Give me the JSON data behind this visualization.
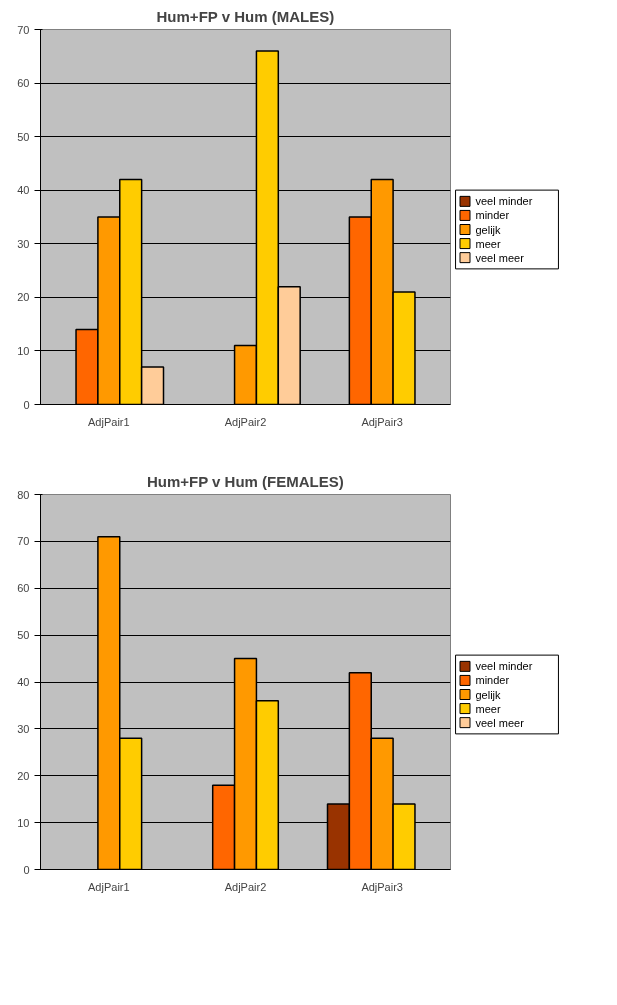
{
  "chart_data": [
    {
      "type": "bar",
      "title": "Hum+FP v Hum (MALES)",
      "categories": [
        "AdjPair1",
        "AdjPair2",
        "AdjPair3"
      ],
      "ylim": [
        0,
        70
      ],
      "yticks": [
        0,
        10,
        20,
        30,
        40,
        50,
        60,
        70
      ],
      "grid": "y",
      "legend": "right",
      "series": [
        {
          "name": "veel minder",
          "color": "#993300",
          "values": [
            null,
            null,
            null
          ]
        },
        {
          "name": "minder",
          "color": "#ff6600",
          "values": [
            14,
            null,
            35
          ]
        },
        {
          "name": "gelijk",
          "color": "#ff9900",
          "values": [
            35,
            11,
            42
          ]
        },
        {
          "name": "meer",
          "color": "#ffcc00",
          "values": [
            42,
            66,
            21
          ]
        },
        {
          "name": "veel meer",
          "color": "#ffcc99",
          "values": [
            7,
            22,
            null
          ]
        }
      ]
    },
    {
      "type": "bar",
      "title": "Hum+FP v Hum (FEMALES)",
      "categories": [
        "AdjPair1",
        "AdjPair2",
        "AdjPair3"
      ],
      "ylim": [
        0,
        80
      ],
      "yticks": [
        0,
        10,
        20,
        30,
        40,
        50,
        60,
        70,
        80
      ],
      "grid": "y",
      "legend": "right",
      "series": [
        {
          "name": "veel minder",
          "color": "#993300",
          "values": [
            null,
            null,
            14
          ]
        },
        {
          "name": "minder",
          "color": "#ff6600",
          "values": [
            null,
            18,
            42
          ]
        },
        {
          "name": "gelijk",
          "color": "#ff9900",
          "values": [
            71,
            45,
            28
          ]
        },
        {
          "name": "meer",
          "color": "#ffcc00",
          "values": [
            28,
            36,
            14
          ]
        },
        {
          "name": "veel meer",
          "color": "#ffcc99",
          "values": [
            null,
            null,
            null
          ]
        }
      ]
    }
  ]
}
